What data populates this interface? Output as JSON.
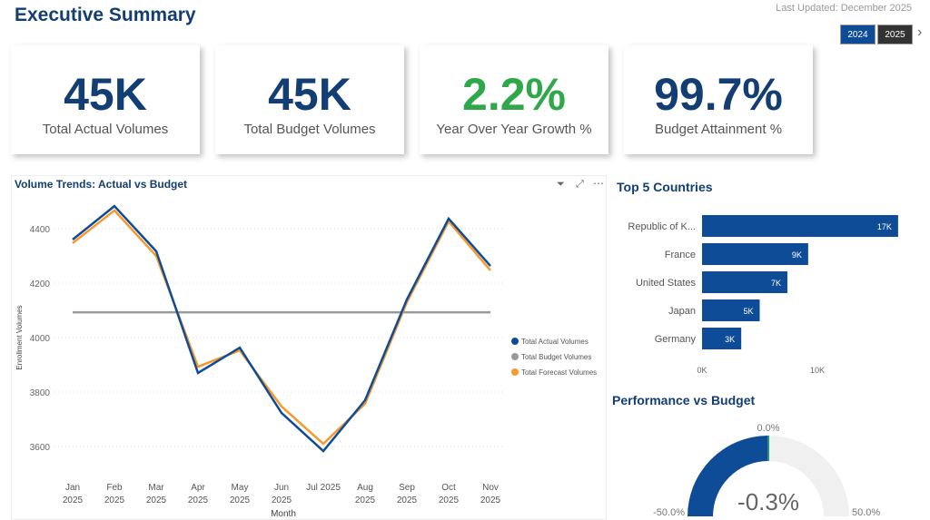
{
  "header": {
    "title": "Executive Summary",
    "last_updated": "Last Updated: December 2025",
    "years": [
      "2024",
      "2025"
    ],
    "selected_year": "2024"
  },
  "kpis": [
    {
      "value": "45K",
      "label": "Total Actual Volumes",
      "color": "#123e74"
    },
    {
      "value": "45K",
      "label": "Total Budget Volumes",
      "color": "#123e74"
    },
    {
      "value": "2.2%",
      "label": "Year Over Year Growth %",
      "color": "#2ea84a"
    },
    {
      "value": "99.7%",
      "label": "Budget Attainment %",
      "color": "#123e74"
    }
  ],
  "chart_data": [
    {
      "type": "line",
      "title": "Volume Trends: Actual vs Budget",
      "xlabel": "Month",
      "ylabel": "Enrollment Volumes",
      "categories": [
        "Jan 2025",
        "Feb 2025",
        "Mar 2025",
        "Apr 2025",
        "May 2025",
        "Jun 2025",
        "Jul 2025",
        "Aug 2025",
        "Sep 2025",
        "Oct 2025",
        "Nov 2025"
      ],
      "yticks": [
        3600,
        3800,
        4000,
        4200,
        4400
      ],
      "ylim": [
        3560,
        4500
      ],
      "grid": true,
      "legend": "right",
      "series": [
        {
          "name": "Total Actual Volumes",
          "color": "#0f4c97",
          "values": [
            4360,
            4483,
            4317,
            3870,
            3963,
            3723,
            3583,
            3770,
            4140,
            4437,
            4263
          ]
        },
        {
          "name": "Total Budget Volumes",
          "color": "#999999",
          "values": [
            4093,
            4093,
            4093,
            4093,
            4093,
            4093,
            4093,
            4093,
            4093,
            4093,
            4093
          ]
        },
        {
          "name": "Total Forecast Volumes",
          "color": "#f7982f",
          "values": [
            4347,
            4467,
            4300,
            3893,
            3953,
            3747,
            3610,
            3757,
            4130,
            4427,
            4247
          ]
        }
      ]
    },
    {
      "type": "bar",
      "orientation": "horizontal",
      "title": "Top 5 Countries",
      "categories": [
        "Republic of K...",
        "France",
        "United States",
        "Japan",
        "Germany"
      ],
      "values": [
        17000,
        9200,
        7400,
        5000,
        3400
      ],
      "labels": [
        "17K",
        "9K",
        "7K",
        "5K",
        "3K"
      ],
      "xticks": [
        "0K",
        "10K"
      ],
      "color": "#0f4c97"
    },
    {
      "type": "gauge",
      "title": "Performance vs Budget",
      "min": -50,
      "max": 50,
      "target": 0,
      "value": -0.3,
      "min_label": "-50.0%",
      "max_label": "50.0%",
      "target_label": "0.0%",
      "value_label": "-0.3%",
      "color": "#0f4c97"
    }
  ]
}
